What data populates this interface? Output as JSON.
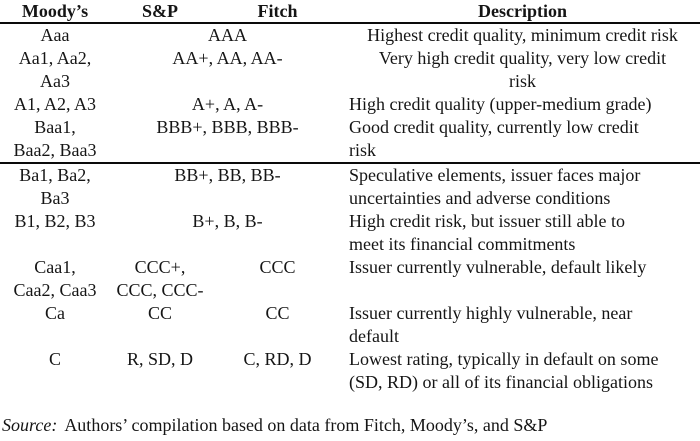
{
  "table": {
    "headers": {
      "moodys": "Moody’s",
      "sp": "S&P",
      "fitch": "Fitch",
      "description": "Description"
    },
    "rows": [
      {
        "moodys": "Aaa",
        "sp": "AAA",
        "fitch": "",
        "desc": "Highest credit quality, minimum credit risk"
      },
      {
        "moodys": "Aa1, Aa2,\nAa3",
        "sp": "AA+, AA, AA-",
        "fitch": "",
        "desc": "Very high credit quality, very low credit\nrisk"
      },
      {
        "moodys": "A1, A2, A3",
        "sp": "A+, A, A-",
        "fitch": "",
        "desc": "High credit quality (upper-medium grade)"
      },
      {
        "moodys": "Baa1,\nBaa2, Baa3",
        "sp": "BBB+, BBB, BBB-",
        "fitch": "",
        "desc": "Good credit quality, currently low credit\nrisk"
      },
      {
        "moodys": "Ba1, Ba2,\nBa3",
        "sp": "BB+, BB, BB-",
        "fitch": "",
        "desc": "Speculative elements, issuer faces major\nuncertainties and adverse conditions"
      },
      {
        "moodys": "B1, B2, B3",
        "sp": "B+, B, B-",
        "fitch": "",
        "desc": "High credit risk, but issuer still able to\nmeet its financial commitments"
      },
      {
        "moodys": "Caa1,\nCaa2, Caa3",
        "sp": "CCC+,\nCCC, CCC-",
        "fitch": "CCC",
        "desc": "Issuer currently vulnerable, default likely"
      },
      {
        "moodys": "Ca",
        "sp": "CC",
        "fitch": "CC",
        "desc": "Issuer currently highly vulnerable, near\ndefault"
      },
      {
        "moodys": "C",
        "sp": "R, SD, D",
        "fitch": "C, RD, D",
        "desc": "Lowest rating, typically in default on some\n(SD, RD) or all of its financial obligations"
      }
    ],
    "source": {
      "label": "Source:",
      "text": "Authors’ compilation based on data from Fitch, Moody’s, and S&P"
    }
  }
}
